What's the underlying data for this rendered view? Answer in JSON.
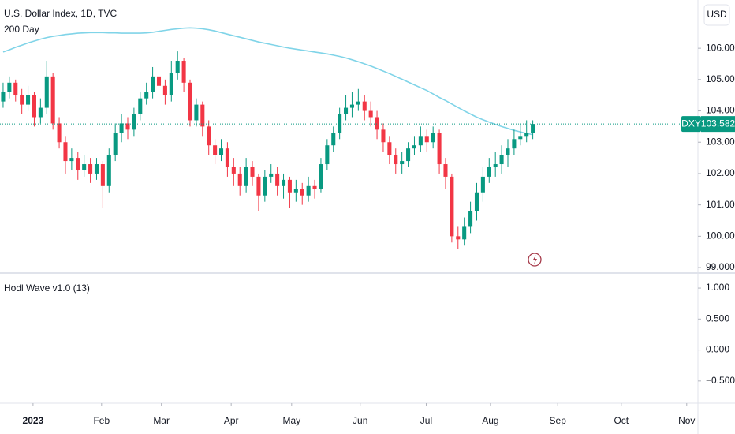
{
  "chart_data": [
    {
      "type": "candlestick",
      "title": "U.S. Dollar Index, 1D, TVC",
      "symbol": "DXY",
      "currency": "USD",
      "up_color": "#089981",
      "down_color": "#f23645",
      "xlim": [
        -0.5,
        111.5
      ],
      "xticks": [
        {
          "value": 4.8,
          "label": "2023"
        },
        {
          "value": 15.8,
          "label": "Feb"
        },
        {
          "value": 25.4,
          "label": "Mar"
        },
        {
          "value": 36.6,
          "label": "Apr"
        },
        {
          "value": 46.3,
          "label": "May"
        },
        {
          "value": 57.3,
          "label": "Jun"
        },
        {
          "value": 67.9,
          "label": "Jul"
        },
        {
          "value": 78.2,
          "label": "Aug"
        },
        {
          "value": 89.0,
          "label": "Sep"
        },
        {
          "value": 99.2,
          "label": "Oct"
        },
        {
          "value": 109.7,
          "label": "Nov"
        }
      ],
      "ylim": [
        98.85,
        107.54
      ],
      "yticks": [
        {
          "value": 99,
          "label": "99.000"
        },
        {
          "value": 100,
          "label": "100.000"
        },
        {
          "value": 101,
          "label": "101.000"
        },
        {
          "value": 102,
          "label": "102.000"
        },
        {
          "value": 103,
          "label": "103.000"
        },
        {
          "value": 104,
          "label": "104.000"
        },
        {
          "value": 105,
          "label": "105.000"
        },
        {
          "value": 106,
          "label": "106.000"
        }
      ],
      "open": [
        104.3,
        104.6,
        104.9,
        104.5,
        104.2,
        104.5,
        103.8,
        104.1,
        105.1,
        103.6,
        103.0,
        102.4,
        102.5,
        102.1,
        102.3,
        102.0,
        102.3,
        101.6,
        102.6,
        103.3,
        103.6,
        103.4,
        103.9,
        104.4,
        104.6,
        105.1,
        104.8,
        104.5,
        105.2,
        105.6,
        104.9,
        103.7,
        104.2,
        103.5,
        102.9,
        102.6,
        102.8,
        102.2,
        102.0,
        101.6,
        102.2,
        101.9,
        101.3,
        101.9,
        102.0,
        101.6,
        101.8,
        101.4,
        101.5,
        101.3,
        101.6,
        101.5,
        102.3,
        102.9,
        103.3,
        103.9,
        104.1,
        104.2,
        104.3,
        104.0,
        103.8,
        103.4,
        103.0,
        102.6,
        102.3,
        102.4,
        102.8,
        102.9,
        103.2,
        103.0,
        103.3,
        102.3,
        101.9,
        100.0,
        99.9,
        100.3,
        100.8,
        101.4,
        101.9,
        102.2,
        102.3,
        102.6,
        102.8,
        103.1,
        103.2,
        103.3
      ],
      "high": [
        104.9,
        105.1,
        105.0,
        104.7,
        104.8,
        104.6,
        104.4,
        105.6,
        105.2,
        103.8,
        103.2,
        102.8,
        102.7,
        102.6,
        102.5,
        102.5,
        102.4,
        102.8,
        103.6,
        103.9,
        103.8,
        104.1,
        104.6,
        104.9,
        105.4,
        105.3,
        105.0,
        105.6,
        105.9,
        105.7,
        105.0,
        104.4,
        104.3,
        103.7,
        103.1,
        103.1,
        103.0,
        102.5,
        102.2,
        102.5,
        102.4,
        102.0,
        102.1,
        102.3,
        102.2,
        102.0,
        101.9,
        101.8,
        101.7,
        101.9,
        101.8,
        102.5,
        103.1,
        103.5,
        104.1,
        104.5,
        104.6,
        104.7,
        104.5,
        104.3,
        104.0,
        103.6,
        103.2,
        102.8,
        102.7,
        103.0,
        103.2,
        103.5,
        103.4,
        103.5,
        103.4,
        102.5,
        102.0,
        100.3,
        100.6,
        101.1,
        101.7,
        102.2,
        102.5,
        102.7,
        102.9,
        103.1,
        103.4,
        103.6,
        103.7,
        103.7
      ],
      "low": [
        104.1,
        104.4,
        104.3,
        103.9,
        104.0,
        103.5,
        103.6,
        103.9,
        103.4,
        102.8,
        102.0,
        102.1,
        101.8,
        101.9,
        101.7,
        101.8,
        100.9,
        101.4,
        102.4,
        103.0,
        103.1,
        103.2,
        103.7,
        104.2,
        104.4,
        104.5,
        104.2,
        104.3,
        105.0,
        104.6,
        103.5,
        103.5,
        103.2,
        102.6,
        102.3,
        102.4,
        101.9,
        101.6,
        101.3,
        101.4,
        101.6,
        100.8,
        101.1,
        101.7,
        101.3,
        101.2,
        100.9,
        101.1,
        101.0,
        101.1,
        101.2,
        101.4,
        102.1,
        102.7,
        103.1,
        103.7,
        103.8,
        104.0,
        103.7,
        103.5,
        103.1,
        102.7,
        102.3,
        102.0,
        102.0,
        102.2,
        102.6,
        102.7,
        102.7,
        102.8,
        102.0,
        101.5,
        99.8,
        99.6,
        99.7,
        100.1,
        100.5,
        101.1,
        101.7,
        101.9,
        102.0,
        102.2,
        102.6,
        102.9,
        103.0,
        103.1
      ],
      "close": [
        104.6,
        104.9,
        104.5,
        104.2,
        104.5,
        103.8,
        104.1,
        105.1,
        103.6,
        103.0,
        102.4,
        102.5,
        102.1,
        102.3,
        102.0,
        102.3,
        101.6,
        102.6,
        103.3,
        103.6,
        103.4,
        103.9,
        104.4,
        104.6,
        105.1,
        104.8,
        104.5,
        105.2,
        105.6,
        104.9,
        103.7,
        104.2,
        103.5,
        102.9,
        102.6,
        102.8,
        102.2,
        102.0,
        101.6,
        102.2,
        101.9,
        101.3,
        101.9,
        102.0,
        101.6,
        101.8,
        101.4,
        101.5,
        101.3,
        101.6,
        101.5,
        102.3,
        102.9,
        103.3,
        103.9,
        104.1,
        104.2,
        104.3,
        104.0,
        103.8,
        103.4,
        103.0,
        102.6,
        102.3,
        102.4,
        102.8,
        102.9,
        103.2,
        103.0,
        103.3,
        102.3,
        101.9,
        100.0,
        99.9,
        100.3,
        100.8,
        101.4,
        101.9,
        102.2,
        102.3,
        102.6,
        102.8,
        103.1,
        103.2,
        103.3,
        103.582
      ],
      "series": [
        {
          "name": "200 Day",
          "color": "#80d4e8",
          "values": [
            105.88,
            105.95,
            106.03,
            106.1,
            106.17,
            106.23,
            106.29,
            106.34,
            106.38,
            106.41,
            106.44,
            106.46,
            106.48,
            106.49,
            106.5,
            106.5,
            106.5,
            106.49,
            106.49,
            106.48,
            106.48,
            106.48,
            106.48,
            106.49,
            106.51,
            106.54,
            106.57,
            106.6,
            106.62,
            106.64,
            106.65,
            106.64,
            106.62,
            106.59,
            106.55,
            106.5,
            106.45,
            106.4,
            106.35,
            106.3,
            106.25,
            106.2,
            106.16,
            106.12,
            106.08,
            106.04,
            106.0,
            105.97,
            105.94,
            105.91,
            105.88,
            105.85,
            105.82,
            105.78,
            105.74,
            105.69,
            105.63,
            105.57,
            105.5,
            105.43,
            105.35,
            105.27,
            105.19,
            105.1,
            105.01,
            104.92,
            104.83,
            104.74,
            104.65,
            104.54,
            104.43,
            104.33,
            104.22,
            104.11,
            104.0,
            103.9,
            103.8,
            103.72,
            103.64,
            103.57,
            103.5,
            103.44,
            103.38,
            103.33,
            103.28,
            103.24
          ]
        }
      ]
    },
    {
      "type": "indicator",
      "title": "Hodl Wave v1.0 (13)",
      "ylim": [
        -0.846,
        1.23
      ],
      "yticks": [
        {
          "value": 1,
          "label": "1.000"
        },
        {
          "value": 0.5,
          "label": "0.500"
        },
        {
          "value": 0,
          "label": "0.000"
        },
        {
          "value": -0.5,
          "label": "−0.500"
        }
      ]
    }
  ]
}
